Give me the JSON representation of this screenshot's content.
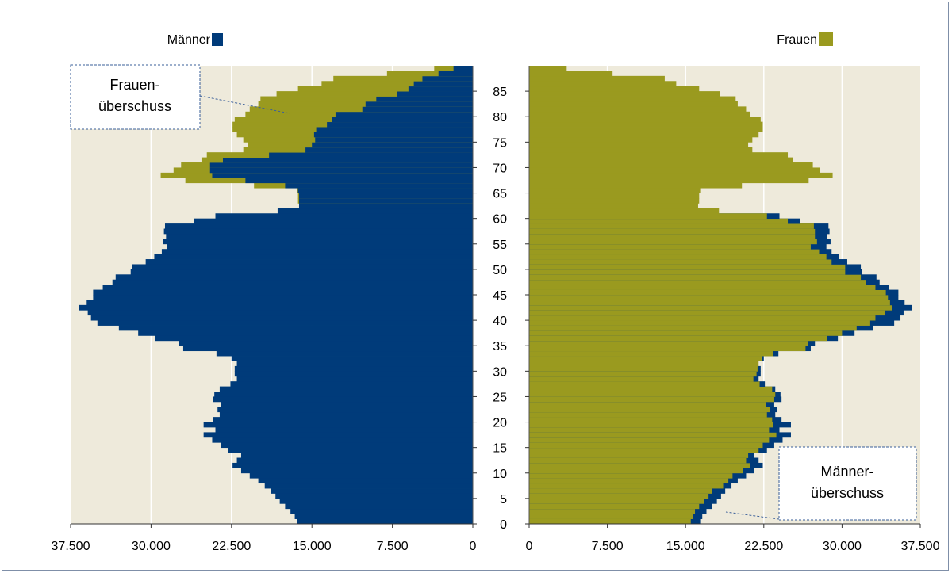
{
  "chart_data": {
    "type": "bar",
    "orientation": "horizontal",
    "layout": "population-pyramid",
    "legend": {
      "left": "Männer",
      "right": "Frauen"
    },
    "colors": {
      "Männer": "#003b7a",
      "Frauen": "#9a9a1f",
      "plot_background": "#eeeadb",
      "grid": "#ffffff"
    },
    "x_axis_ticks_left": [
      "37.500",
      "30.000",
      "22.500",
      "15.000",
      "7.500",
      "0"
    ],
    "x_axis_ticks_right": [
      "0",
      "7.500",
      "15.000",
      "22.500",
      "30.000",
      "37.500"
    ],
    "xlim": [
      0,
      37500
    ],
    "y_axis_ticks": [
      "0",
      "5",
      "10",
      "15",
      "20",
      "25",
      "30",
      "35",
      "40",
      "45",
      "50",
      "55",
      "60",
      "65",
      "70",
      "75",
      "80",
      "85"
    ],
    "ylim": [
      0,
      89
    ],
    "ages": [
      0,
      1,
      2,
      3,
      4,
      5,
      6,
      7,
      8,
      9,
      10,
      11,
      12,
      13,
      14,
      15,
      16,
      17,
      18,
      19,
      20,
      21,
      22,
      23,
      24,
      25,
      26,
      27,
      28,
      29,
      30,
      31,
      32,
      33,
      34,
      35,
      36,
      37,
      38,
      39,
      40,
      41,
      42,
      43,
      44,
      45,
      46,
      47,
      48,
      49,
      50,
      51,
      52,
      53,
      54,
      55,
      56,
      57,
      58,
      59,
      60,
      61,
      62,
      63,
      64,
      65,
      66,
      67,
      68,
      69,
      70,
      71,
      72,
      73,
      74,
      75,
      76,
      77,
      78,
      79,
      80,
      81,
      82,
      83,
      84,
      85,
      86,
      87,
      88,
      89
    ],
    "series": [
      {
        "name": "Männer",
        "values": [
          16400,
          16600,
          17000,
          17500,
          18000,
          18400,
          18800,
          19400,
          20000,
          20800,
          21600,
          22400,
          22000,
          21600,
          22800,
          23500,
          24300,
          25100,
          24000,
          25100,
          24200,
          23600,
          23800,
          23500,
          24200,
          24100,
          23600,
          22600,
          22000,
          22200,
          22200,
          22000,
          22500,
          23900,
          27000,
          27400,
          29600,
          31200,
          33000,
          35000,
          35600,
          35900,
          36700,
          36000,
          35400,
          35400,
          34500,
          33600,
          33300,
          31900,
          31800,
          30500,
          29700,
          29000,
          28500,
          28900,
          28600,
          28800,
          28700,
          26000,
          24000,
          18200,
          16200,
          16200,
          16200,
          16300,
          17500,
          21200,
          24300,
          24500,
          24500,
          23300,
          19000,
          15600,
          15000,
          14700,
          14800,
          14600,
          13600,
          13100,
          12800,
          10300,
          10000,
          9000,
          7100,
          6000,
          5500,
          4700,
          3200,
          1800
        ],
        "surplus_label": "Männer-\nüberschuss"
      },
      {
        "name": "Frauen",
        "values": [
          15500,
          15700,
          15900,
          16300,
          16800,
          17200,
          17500,
          18600,
          19100,
          19500,
          20500,
          21200,
          20800,
          21000,
          22000,
          22400,
          23000,
          23700,
          23000,
          23400,
          23300,
          22800,
          23100,
          22700,
          23500,
          23600,
          23300,
          22100,
          21500,
          21800,
          21900,
          22000,
          22300,
          23400,
          26500,
          26700,
          28600,
          30000,
          31400,
          32700,
          33200,
          34100,
          34800,
          34600,
          34400,
          34200,
          33200,
          32300,
          31800,
          30300,
          30300,
          29000,
          28500,
          27800,
          27000,
          27600,
          27400,
          27400,
          27300,
          24800,
          22800,
          18200,
          16200,
          16300,
          16300,
          16400,
          20400,
          26800,
          29100,
          27900,
          27200,
          25300,
          24800,
          21400,
          21000,
          21400,
          22000,
          22400,
          22400,
          22200,
          21200,
          20800,
          20000,
          19800,
          18300,
          16300,
          14100,
          13000,
          8000,
          3600
        ],
        "surplus_label": "Frauen-\nüberschuss"
      }
    ],
    "annotations": [
      {
        "line1": "Frauen-",
        "line2": "überschuss",
        "side": "left",
        "age": 81
      },
      {
        "line1": "Männer-",
        "line2": "überschuss",
        "side": "right",
        "age": 7
      }
    ]
  }
}
